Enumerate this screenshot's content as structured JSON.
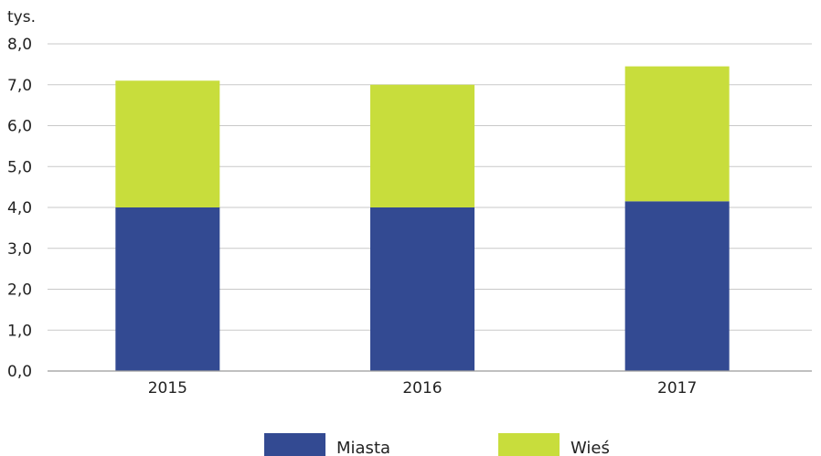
{
  "chart_data": {
    "type": "bar",
    "stacked": true,
    "unit": "tys.",
    "categories": [
      "2015",
      "2016",
      "2017"
    ],
    "series": [
      {
        "name": "Miasta",
        "color": "#334a92",
        "values": [
          4.0,
          4.0,
          4.15
        ]
      },
      {
        "name": "Wieś",
        "color": "#c8dd3c",
        "values": [
          3.1,
          3.0,
          3.3
        ]
      }
    ],
    "ylim": [
      0,
      8
    ],
    "yticks": [
      "0,0",
      "1,0",
      "2,0",
      "3,0",
      "4,0",
      "5,0",
      "6,0",
      "7,0",
      "8,0"
    ],
    "grid": true,
    "legend": "bottom-center"
  }
}
